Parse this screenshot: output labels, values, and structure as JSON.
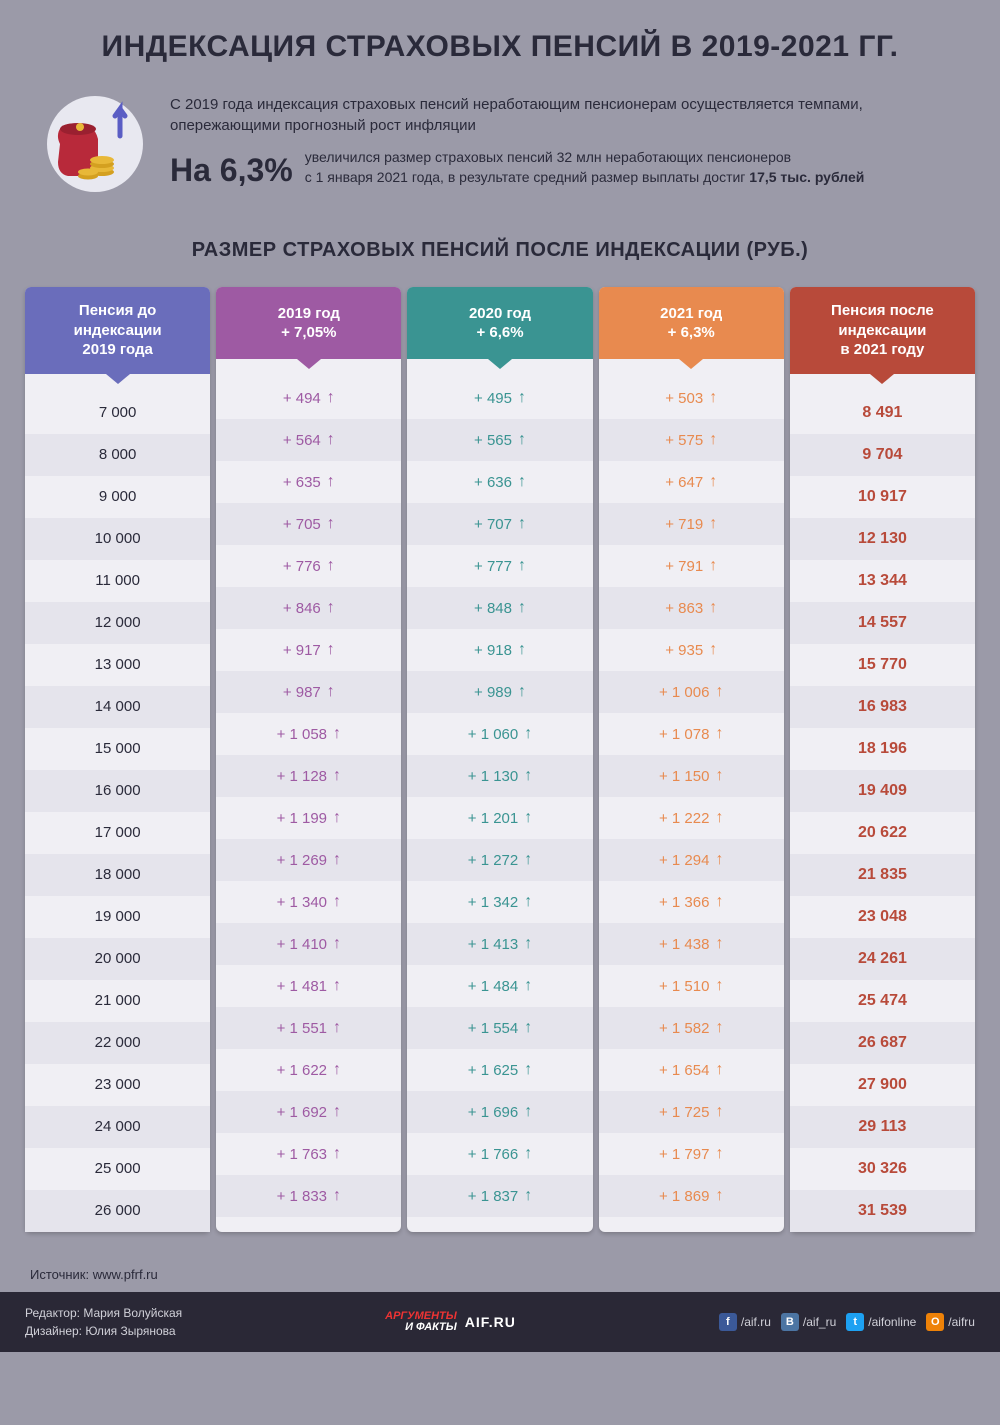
{
  "title": "ИНДЕКСАЦИЯ СТРАХОВЫХ ПЕНСИЙ В 2019-2021 ГГ.",
  "intro": {
    "lead": "С 2019 года индексация страховых пенсий неработающим пенсионерам осуществляется темпами, опережающими прогнозный рост инфляции",
    "big_pct": "На 6,3%",
    "desc_1": "увеличился размер страховых пенсий 32 млн неработающих пенсионеров",
    "desc_2": "с 1 января 2021 года, в результате средний размер выплаты достиг ",
    "desc_bold": "17,5 тыс. рублей"
  },
  "subtitle": "РАЗМЕР СТРАХОВЫХ ПЕНСИЙ ПОСЛЕ ИНДЕКСАЦИИ (РУБ.)",
  "columns": [
    {
      "h1": "Пенсия до",
      "h2": "индексации",
      "h3": "2019 года",
      "color": "#6a6dbb",
      "cell_color": "#2a2a3a"
    },
    {
      "h1": "2019 год",
      "h2": "+ 7,05%",
      "h3": "",
      "color": "#9e5aa3",
      "cell_color": "#9e5aa3"
    },
    {
      "h1": "2020 год",
      "h2": "+ 6,6%",
      "h3": "",
      "color": "#3a9492",
      "cell_color": "#3a9492"
    },
    {
      "h1": "2021 год",
      "h2": "+ 6,3%",
      "h3": "",
      "color": "#e88a4f",
      "cell_color": "#e88a4f"
    },
    {
      "h1": "Пенсия после",
      "h2": "индексации",
      "h3": "в 2021 году",
      "color": "#b84a3a",
      "cell_color": "#b84a3a"
    }
  ],
  "rows": [
    [
      "7 000",
      "+ 494",
      "+ 495",
      "+ 503",
      "8 491"
    ],
    [
      "8 000",
      "+ 564",
      "+ 565",
      "+ 575",
      "9 704"
    ],
    [
      "9 000",
      "+ 635",
      "+ 636",
      "+ 647",
      "10 917"
    ],
    [
      "10 000",
      "+ 705",
      "+ 707",
      "+ 719",
      "12 130"
    ],
    [
      "11 000",
      "+ 776",
      "+ 777",
      "+ 791",
      "13 344"
    ],
    [
      "12 000",
      "+ 846",
      "+ 848",
      "+ 863",
      "14 557"
    ],
    [
      "13 000",
      "+ 917",
      "+ 918",
      "+ 935",
      "15 770"
    ],
    [
      "14 000",
      "+ 987",
      "+ 989",
      "+ 1 006",
      "16 983"
    ],
    [
      "15 000",
      "+ 1 058",
      "+ 1 060",
      "+ 1 078",
      "18 196"
    ],
    [
      "16 000",
      "+ 1 128",
      "+ 1 130",
      "+ 1 150",
      "19 409"
    ],
    [
      "17 000",
      "+ 1 199",
      "+ 1 201",
      "+ 1 222",
      "20 622"
    ],
    [
      "18 000",
      "+ 1 269",
      "+ 1 272",
      "+ 1 294",
      "21 835"
    ],
    [
      "19 000",
      "+ 1 340",
      "+ 1 342",
      "+ 1 366",
      "23 048"
    ],
    [
      "20 000",
      "+ 1 410",
      "+ 1 413",
      "+ 1 438",
      "24 261"
    ],
    [
      "21 000",
      "+ 1 481",
      "+ 1 484",
      "+ 1 510",
      "25 474"
    ],
    [
      "22 000",
      "+ 1 551",
      "+ 1 554",
      "+ 1 582",
      "26 687"
    ],
    [
      "23 000",
      "+ 1 622",
      "+ 1 625",
      "+ 1 654",
      "27 900"
    ],
    [
      "24 000",
      "+ 1 692",
      "+ 1 696",
      "+ 1 725",
      "29 113"
    ],
    [
      "25 000",
      "+ 1 763",
      "+ 1 766",
      "+ 1 797",
      "30 326"
    ],
    [
      "26 000",
      "+ 1 833",
      "+ 1 837",
      "+ 1 869",
      "31 539"
    ]
  ],
  "arrow_cols": [
    1,
    2,
    3
  ],
  "source": "Источник: www.pfrf.ru",
  "footer": {
    "editor": "Редактор: Мария Волуйская",
    "designer": "Дизайнер: Юлия Зырянова",
    "logo_top": "АРГУМЕНТЫ",
    "logo_bot": "И ФАКТЫ",
    "logo_site": "AIF.RU",
    "socials": [
      {
        "ico": "f",
        "cls": "fb",
        "label": "/aif.ru"
      },
      {
        "ico": "B",
        "cls": "vk",
        "label": "/aif_ru"
      },
      {
        "ico": "t",
        "cls": "tw",
        "label": "/aifonline"
      },
      {
        "ico": "O",
        "cls": "ok",
        "label": "/aifru"
      }
    ]
  },
  "styling": {
    "page_bg": "#9b9aa8",
    "title_color": "#2a2a3a",
    "row_alt_bg": "#e5e4ec",
    "col_bg": "#f0eff4",
    "footer_bg": "#2a2836"
  }
}
